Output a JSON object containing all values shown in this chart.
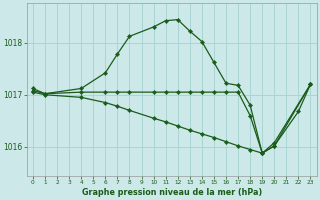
{
  "title": "Graphe pression niveau de la mer (hPa)",
  "bg_color": "#cce8e8",
  "grid_color": "#aad4d4",
  "line_color": "#1a5c1a",
  "yticks": [
    1016,
    1017,
    1018
  ],
  "xticks": [
    0,
    1,
    2,
    3,
    4,
    5,
    6,
    7,
    8,
    9,
    10,
    11,
    12,
    13,
    14,
    15,
    16,
    17,
    18,
    19,
    20,
    21,
    22,
    23
  ],
  "xlim": [
    -0.5,
    23.5
  ],
  "ylim": [
    1015.45,
    1018.75
  ],
  "line1_x": [
    0,
    1,
    4,
    6,
    7,
    8,
    10,
    11,
    12,
    13,
    14,
    15,
    16,
    17,
    18,
    19,
    20,
    22,
    23
  ],
  "line1_y": [
    1017.12,
    1017.02,
    1017.12,
    1017.42,
    1017.78,
    1018.12,
    1018.3,
    1018.42,
    1018.44,
    1018.22,
    1018.02,
    1017.62,
    1017.22,
    1017.18,
    1016.8,
    1015.88,
    1016.02,
    1016.68,
    1017.2
  ],
  "line2_x": [
    0,
    1,
    4,
    6,
    7,
    8,
    10,
    11,
    12,
    13,
    14,
    15,
    16,
    17,
    18,
    19,
    20,
    23
  ],
  "line2_y": [
    1017.08,
    1017.02,
    1017.05,
    1017.05,
    1017.05,
    1017.05,
    1017.05,
    1017.05,
    1017.05,
    1017.05,
    1017.05,
    1017.05,
    1017.05,
    1017.05,
    1016.6,
    1015.88,
    1016.08,
    1017.2
  ],
  "line3_x": [
    0,
    1,
    4,
    6,
    7,
    8,
    10,
    11,
    12,
    13,
    14,
    15,
    16,
    17,
    18,
    19,
    20,
    23
  ],
  "line3_y": [
    1017.05,
    1017.0,
    1016.95,
    1016.85,
    1016.78,
    1016.7,
    1016.55,
    1016.48,
    1016.4,
    1016.32,
    1016.25,
    1016.18,
    1016.1,
    1016.02,
    1015.95,
    1015.88,
    1016.02,
    1017.2
  ]
}
